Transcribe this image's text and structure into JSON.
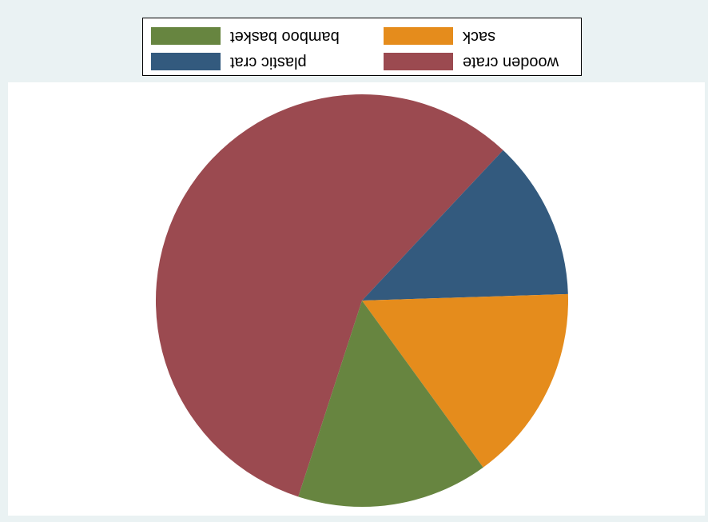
{
  "chart_data": {
    "type": "pie",
    "title": "",
    "start_angle_deg": 198,
    "direction": "clockwise",
    "slices": [
      {
        "label": "wooden crate",
        "value": 57.0,
        "color": "#9b4a50"
      },
      {
        "label": "plastic crat",
        "value": 12.5,
        "color": "#335a7e"
      },
      {
        "label": "sack",
        "value": 15.5,
        "color": "#e58c1c"
      },
      {
        "label": "bamboo basket",
        "value": 15.0,
        "color": "#678540"
      }
    ],
    "legend": {
      "placement": "top",
      "columns": 2,
      "order": [
        "bamboo basket",
        "sack",
        "plastic crat",
        "wooden crate"
      ]
    }
  },
  "legend_items": [
    {
      "label": "bamboo basket",
      "color": "#678540"
    },
    {
      "label": "sack",
      "color": "#e58c1c"
    },
    {
      "label": "plastic crat",
      "color": "#335a7e"
    },
    {
      "label": "wooden crate",
      "color": "#9b4a50"
    }
  ]
}
